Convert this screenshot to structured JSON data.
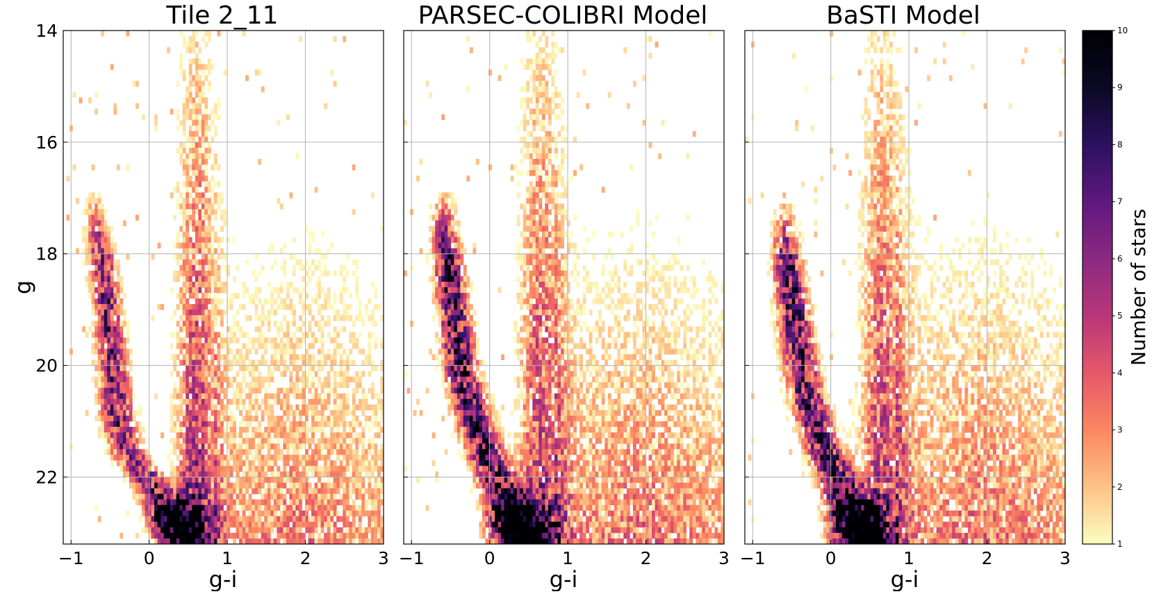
{
  "figure": {
    "colorbar": {
      "label": "Number of stars",
      "vmin": 1,
      "vmax": 10,
      "ticks": [
        "1",
        "2",
        "3",
        "4",
        "5",
        "6",
        "7",
        "8",
        "9",
        "10"
      ],
      "colormap": "magma_r",
      "colormap_stops": [
        "#fcfdbf",
        "#fec287",
        "#fb8761",
        "#e5586a",
        "#b73779",
        "#8c2981",
        "#5f187f",
        "#2c115f",
        "#0b0924",
        "#000004"
      ]
    }
  },
  "chart_data": [
    {
      "type": "heatmap",
      "title": "Tile 2_11",
      "xlabel": "g-i",
      "ylabel": "g",
      "xlim": [
        -1.1,
        3.0
      ],
      "ylim": [
        23.2,
        14.0
      ],
      "x_ticks": [
        "−1",
        "0",
        "1",
        "2",
        "3"
      ],
      "y_ticks": [
        "14",
        "16",
        "18",
        "20",
        "22"
      ],
      "grid": true,
      "sequence": {
        "x": [
          -0.7,
          -0.6,
          -0.55,
          -0.5,
          -0.45,
          -0.4,
          -0.3,
          -0.15,
          0.0,
          0.15,
          0.3,
          0.45
        ],
        "y": [
          17.2,
          18.2,
          18.8,
          19.5,
          20.3,
          21.0,
          21.5,
          21.8,
          22.1,
          22.5,
          22.9,
          23.2
        ],
        "width": 0.07,
        "peak": 6.0
      },
      "turnoff_clump": {
        "x": 0.4,
        "y": 22.85,
        "sx": 0.22,
        "sy": 0.35,
        "peak": 8.5
      },
      "giant_branch": {
        "x": 0.6,
        "width": 0.18,
        "y_range": [
          14.0,
          23.2
        ],
        "peak": 5.5
      },
      "field": {
        "x_range": [
          0.8,
          3.0
        ],
        "peak": 3.2
      }
    },
    {
      "type": "heatmap",
      "title": "PARSEC-COLIBRI Model",
      "xlabel": "g-i",
      "ylabel": "",
      "xlim": [
        -1.1,
        3.0
      ],
      "ylim": [
        23.2,
        14.0
      ],
      "x_ticks": [
        "−1",
        "0",
        "1",
        "2",
        "3"
      ],
      "y_ticks": [],
      "grid": true,
      "sequence": {
        "x": [
          -0.6,
          -0.55,
          -0.45,
          -0.35,
          -0.2,
          -0.05,
          0.1,
          0.25,
          0.4
        ],
        "y": [
          17.2,
          18.0,
          19.2,
          20.2,
          21.0,
          21.6,
          22.1,
          22.7,
          23.2
        ],
        "width": 0.08,
        "peak": 7.5
      },
      "turnoff_clump": {
        "x": 0.4,
        "y": 22.9,
        "sx": 0.25,
        "sy": 0.35,
        "peak": 10.0
      },
      "giant_branch": {
        "x": 0.65,
        "width": 0.2,
        "y_range": [
          14.0,
          23.2
        ],
        "peak": 5.0
      },
      "field": {
        "x_range": [
          0.8,
          3.0
        ],
        "peak": 3.5
      }
    },
    {
      "type": "heatmap",
      "title": "BaSTI Model",
      "xlabel": "g-i",
      "ylabel": "",
      "xlim": [
        -1.1,
        3.0
      ],
      "ylim": [
        23.2,
        14.0
      ],
      "x_ticks": [
        "−1",
        "0",
        "1",
        "2",
        "3"
      ],
      "y_ticks": [],
      "grid": true,
      "sequence": {
        "x": [
          -0.6,
          -0.55,
          -0.45,
          -0.35,
          -0.2,
          -0.05,
          0.1,
          0.25,
          0.4
        ],
        "y": [
          17.4,
          18.2,
          19.4,
          20.3,
          21.1,
          21.6,
          22.1,
          22.7,
          23.2
        ],
        "width": 0.08,
        "peak": 7.5
      },
      "turnoff_clump": {
        "x": 0.35,
        "y": 22.9,
        "sx": 0.22,
        "sy": 0.35,
        "peak": 10.0
      },
      "giant_branch": {
        "x": 0.65,
        "width": 0.2,
        "y_range": [
          14.0,
          23.2
        ],
        "peak": 5.0
      },
      "field": {
        "x_range": [
          0.8,
          3.0
        ],
        "peak": 3.5
      }
    }
  ]
}
